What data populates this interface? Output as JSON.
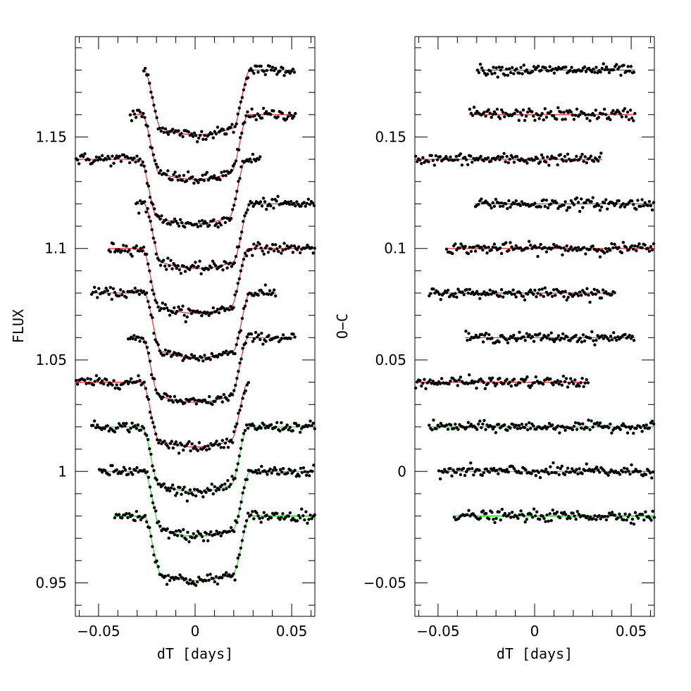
{
  "chart_data": [
    {
      "type": "scatter",
      "panel": "left",
      "xlabel": "dT [days]",
      "ylabel": "FLUX",
      "xlim": [
        -0.062,
        0.062
      ],
      "ylim": [
        0.935,
        1.195
      ],
      "xticks": [
        -0.05,
        0,
        0.05
      ],
      "xtick_labels": [
        "−0.05",
        "0",
        "0.05"
      ],
      "yticks": [
        0.95,
        1.0,
        1.05,
        1.1,
        1.15
      ],
      "ytick_labels": [
        "0.95",
        "1",
        "1.05",
        "1.1",
        "1.15"
      ],
      "grid": false,
      "transit_model": {
        "depth": 0.029,
        "ingress_start": 0.0275,
        "ingress_end": 0.0185,
        "bottom_curvature": 0.1
      },
      "series": [
        {
          "offset": 1.18,
          "xmin": -0.027,
          "xmax": 0.052,
          "color": "#ff0000",
          "tc": 0.001,
          "noise": 0.0012
        },
        {
          "offset": 1.16,
          "xmin": -0.034,
          "xmax": 0.052,
          "color": "#ff0000",
          "tc": 0.0,
          "noise": 0.0013
        },
        {
          "offset": 1.14,
          "xmin": -0.062,
          "xmax": 0.034,
          "color": "#ff0000",
          "tc": -0.001,
          "noise": 0.0013
        },
        {
          "offset": 1.12,
          "xmin": -0.031,
          "xmax": 0.062,
          "color": "#ff0000",
          "tc": 0.001,
          "noise": 0.0012
        },
        {
          "offset": 1.1,
          "xmin": -0.045,
          "xmax": 0.062,
          "color": "#ff0000",
          "tc": 0.0,
          "noise": 0.0012
        },
        {
          "offset": 1.08,
          "xmin": -0.054,
          "xmax": 0.042,
          "color": "#ff0000",
          "tc": 0.001,
          "noise": 0.0011
        },
        {
          "offset": 1.06,
          "xmin": -0.035,
          "xmax": 0.052,
          "color": "#ff0000",
          "tc": 0.0,
          "noise": 0.0011
        },
        {
          "offset": 1.04,
          "xmin": -0.062,
          "xmax": 0.028,
          "color": "#ff0000",
          "tc": 0.0,
          "noise": 0.0012
        },
        {
          "offset": 1.02,
          "xmin": -0.054,
          "xmax": 0.062,
          "color": "#00dd00",
          "tc": 0.0,
          "noise": 0.0011
        },
        {
          "offset": 1.0,
          "xmin": -0.05,
          "xmax": 0.062,
          "color": "#00dd00",
          "tc": 0.001,
          "noise": 0.0013
        },
        {
          "offset": 0.98,
          "xmin": -0.042,
          "xmax": 0.062,
          "color": "#00dd00",
          "tc": 0.001,
          "noise": 0.0013
        }
      ]
    },
    {
      "type": "scatter",
      "panel": "right",
      "xlabel": "dT [days]",
      "ylabel": "O−C",
      "xlim": [
        -0.062,
        0.062
      ],
      "ylim": [
        -0.065,
        0.195
      ],
      "xticks": [
        -0.05,
        0,
        0.05
      ],
      "xtick_labels": [
        "−0.05",
        "0",
        "0.05"
      ],
      "yticks": [
        -0.05,
        0,
        0.05,
        0.1,
        0.15
      ],
      "ytick_labels": [
        "−0.05",
        "0",
        "0.05",
        "0.1",
        "0.15"
      ],
      "grid": false,
      "series": [
        {
          "offset": 0.18,
          "xmin": -0.03,
          "xmax": 0.052,
          "color": "#ff0000",
          "noise": 0.0012
        },
        {
          "offset": 0.16,
          "xmin": -0.034,
          "xmax": 0.052,
          "color": "#ff0000",
          "noise": 0.0014
        },
        {
          "offset": 0.14,
          "xmin": -0.062,
          "xmax": 0.035,
          "color": "#ff0000",
          "noise": 0.0012
        },
        {
          "offset": 0.12,
          "xmin": -0.031,
          "xmax": 0.062,
          "color": "#ff0000",
          "noise": 0.0013
        },
        {
          "offset": 0.1,
          "xmin": -0.046,
          "xmax": 0.062,
          "color": "#ff0000",
          "noise": 0.0012
        },
        {
          "offset": 0.08,
          "xmin": -0.055,
          "xmax": 0.042,
          "color": "#ff0000",
          "noise": 0.0011
        },
        {
          "offset": 0.06,
          "xmin": -0.036,
          "xmax": 0.052,
          "color": "#ff0000",
          "noise": 0.0011
        },
        {
          "offset": 0.04,
          "xmin": -0.062,
          "xmax": 0.028,
          "color": "#ff0000",
          "noise": 0.0012
        },
        {
          "offset": 0.02,
          "xmin": -0.055,
          "xmax": 0.062,
          "color": "#00dd00",
          "noise": 0.0011
        },
        {
          "offset": 0.0,
          "xmin": -0.05,
          "xmax": 0.062,
          "color": "#00dd00",
          "noise": 0.0013
        },
        {
          "offset": -0.02,
          "xmin": -0.042,
          "xmax": 0.062,
          "color": "#00dd00",
          "noise": 0.0012
        }
      ]
    }
  ]
}
